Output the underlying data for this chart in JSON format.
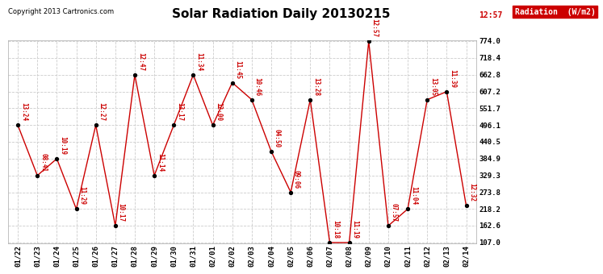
{
  "title": "Solar Radiation Daily 20130215",
  "copyright": "Copyright 2013 Cartronics.com",
  "legend_label": "Radiation  (W/m2)",
  "x_labels": [
    "01/22",
    "01/23",
    "01/24",
    "01/25",
    "01/26",
    "01/27",
    "01/28",
    "01/29",
    "01/30",
    "01/31",
    "02/01",
    "02/02",
    "02/03",
    "02/04",
    "02/05",
    "02/06",
    "02/07",
    "02/08",
    "02/09",
    "02/10",
    "02/11",
    "02/12",
    "02/13",
    "02/14"
  ],
  "y_values": [
    496.1,
    329.3,
    384.9,
    218.2,
    496.1,
    162.6,
    662.8,
    329.3,
    496.1,
    662.8,
    496.1,
    637.0,
    580.5,
    409.0,
    273.8,
    580.5,
    107.0,
    107.0,
    774.0,
    162.6,
    218.2,
    580.5,
    607.2,
    229.0
  ],
  "point_labels": [
    "13:24",
    "08:41",
    "10:19",
    "11:29",
    "12:27",
    "10:17",
    "12:47",
    "11:14",
    "13:17",
    "11:34",
    "12:00",
    "11:45",
    "10:46",
    "04:50",
    "09:06",
    "13:28",
    "10:18",
    "11:19",
    "12:57",
    "07:57",
    "11:04",
    "13:05",
    "11:39",
    "12:32"
  ],
  "ylim": [
    107.0,
    774.0
  ],
  "yticks": [
    107.0,
    162.6,
    218.2,
    273.8,
    329.3,
    384.9,
    440.5,
    496.1,
    551.7,
    607.2,
    662.8,
    718.4,
    774.0
  ],
  "line_color": "#cc0000",
  "marker_color": "#000000",
  "label_color": "#cc0000",
  "bg_color": "#ffffff",
  "grid_color": "#cccccc",
  "title_color": "#000000",
  "legend_bg": "#cc0000",
  "legend_text_color": "#ffffff"
}
